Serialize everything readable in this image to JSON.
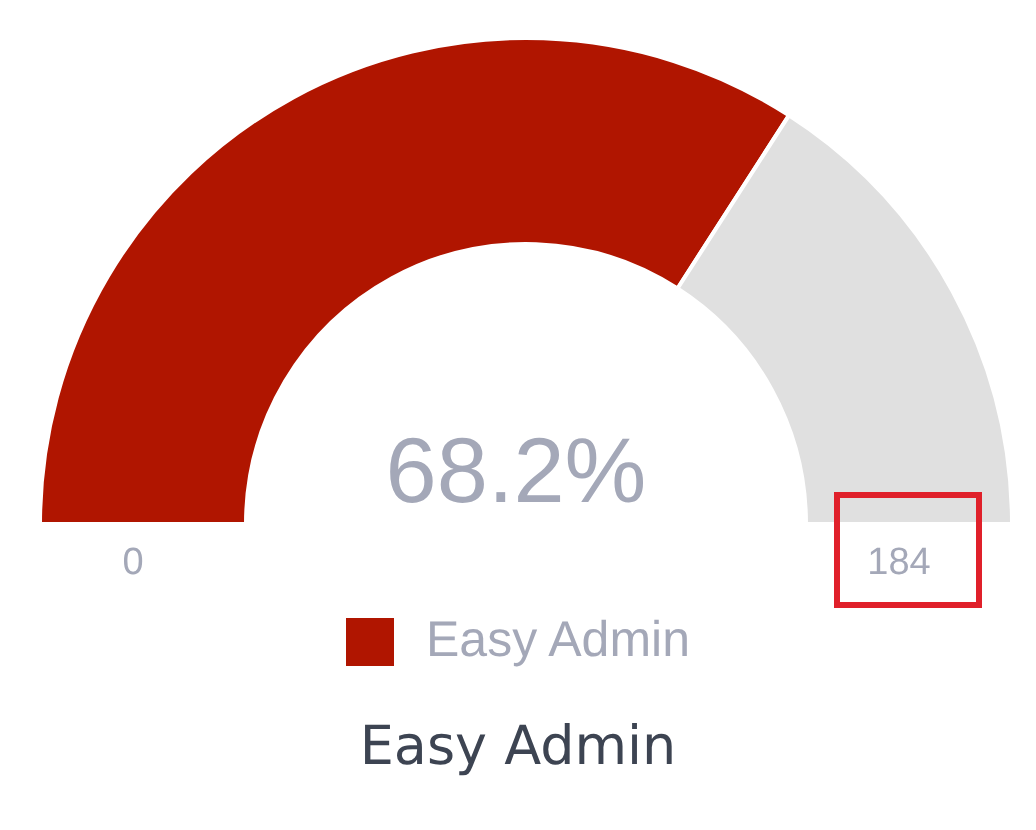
{
  "chart_data": {
    "type": "donut",
    "title": "Easy Admin",
    "categories": [
      "Easy Admin",
      null
    ],
    "values": [
      68.2,
      31.8
    ],
    "colors": [
      "#b01500",
      "#e0e0e0"
    ],
    "value_labels": [
      "68.2%",
      null
    ],
    "legend": "bottom",
    "annotations": [
      "0",
      "184"
    ]
  }
}
